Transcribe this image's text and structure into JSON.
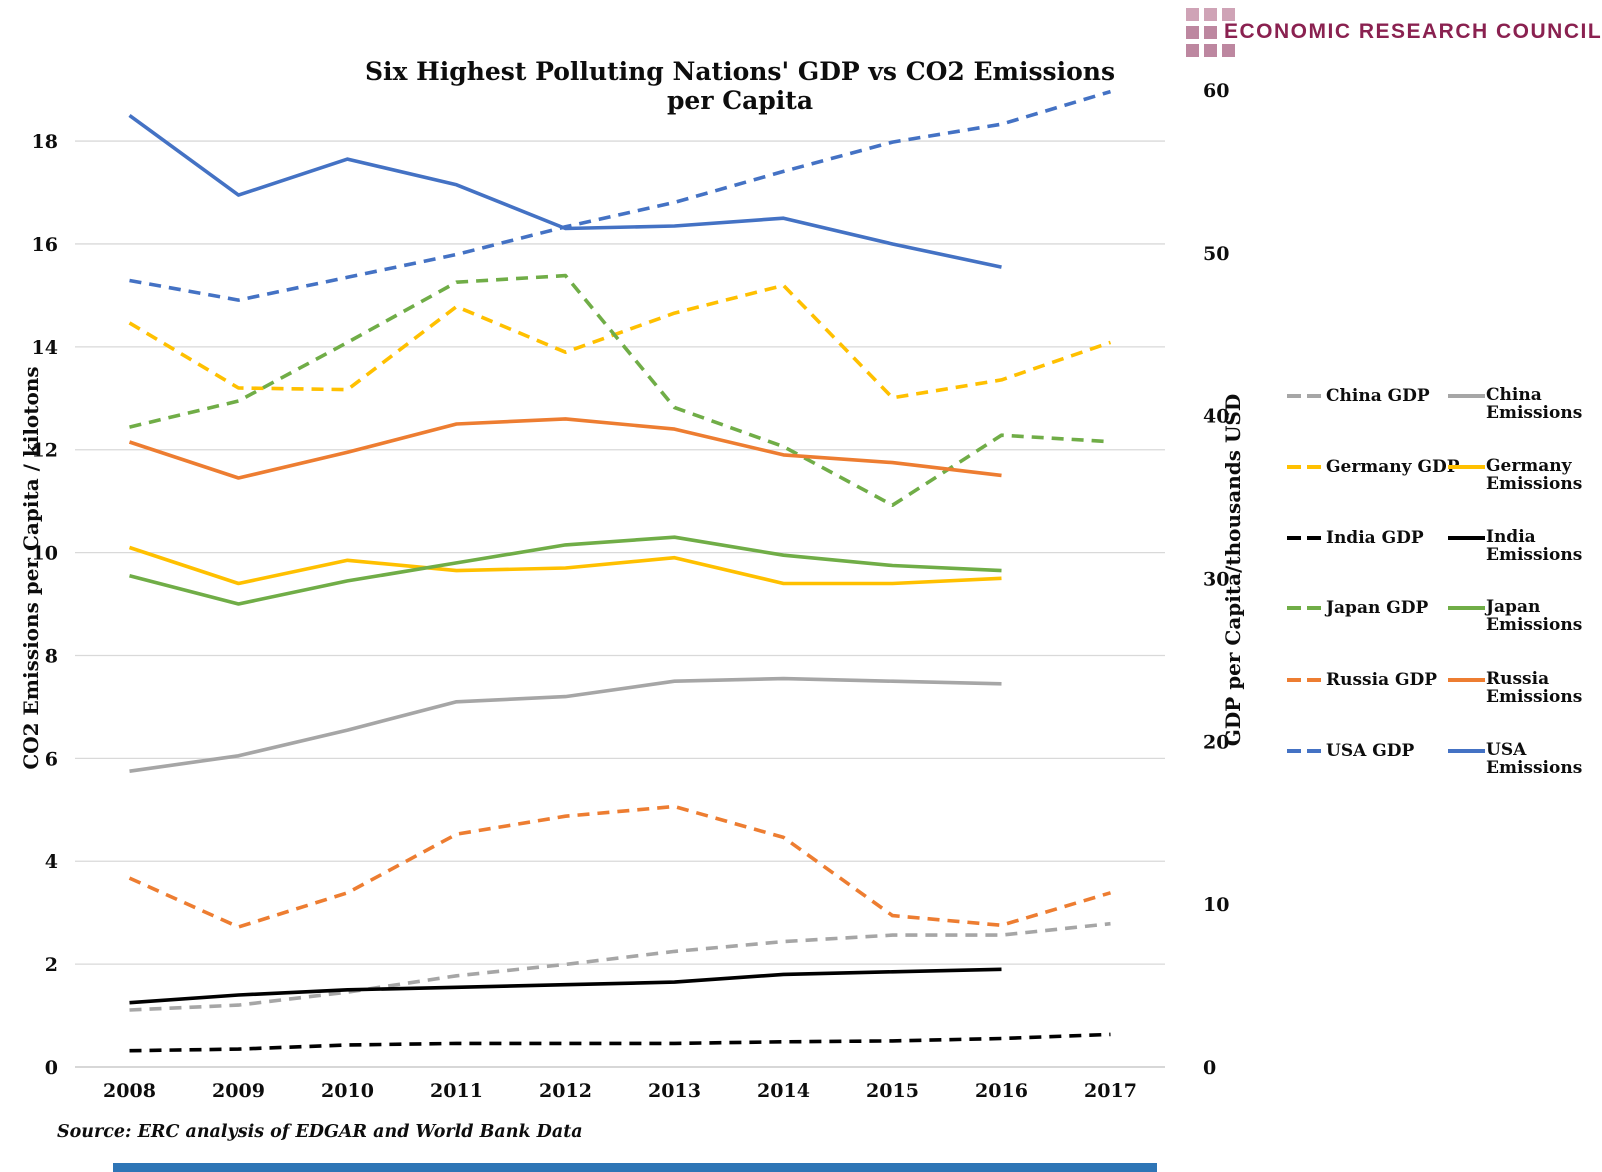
{
  "logo": {
    "text": "ECONOMIC RESEARCH COUNCIL",
    "brand_color": "#8a2150"
  },
  "chart_data": {
    "type": "line",
    "title": "Six Highest Polluting Nations' GDP vs CO2 Emissions per Capita",
    "source": "Source: ERC analysis of EDGAR and World Bank Data",
    "x": [
      2008,
      2009,
      2010,
      2011,
      2012,
      2013,
      2014,
      2015,
      2016,
      2017
    ],
    "left_axis": {
      "label": "CO2 Emissions per Capita / kilotons",
      "ticks": [
        0,
        2,
        4,
        6,
        8,
        10,
        12,
        14,
        16,
        18
      ],
      "range": [
        0,
        19.3
      ],
      "grid": true
    },
    "right_axis": {
      "label": "GDP per Capita/thousands USD",
      "ticks": [
        0,
        10,
        20,
        30,
        40,
        50,
        60
      ],
      "range": [
        0,
        60
      ],
      "grid": false
    },
    "legend_position": "right",
    "series": [
      {
        "name": "China GDP",
        "axis": "right",
        "style": "dashed",
        "color": "#A6A6A6",
        "values": [
          3.5,
          3.8,
          4.6,
          5.6,
          6.3,
          7.1,
          7.7,
          8.1,
          8.1,
          8.8
        ]
      },
      {
        "name": "China Emissions",
        "axis": "left",
        "style": "solid",
        "color": "#A6A6A6",
        "values": [
          5.75,
          6.05,
          6.55,
          7.1,
          7.2,
          7.5,
          7.55,
          7.5,
          7.45,
          null
        ]
      },
      {
        "name": "Germany GDP",
        "axis": "right",
        "style": "dashed",
        "color": "#FFC000",
        "values": [
          45.7,
          41.7,
          41.6,
          46.7,
          43.9,
          46.3,
          48.0,
          41.1,
          42.2,
          44.5
        ]
      },
      {
        "name": "Germany Emissions",
        "axis": "left",
        "style": "solid",
        "color": "#FFC000",
        "values": [
          10.1,
          9.4,
          9.85,
          9.65,
          9.7,
          9.9,
          9.4,
          9.4,
          9.5,
          null
        ]
      },
      {
        "name": "India GDP",
        "axis": "right",
        "style": "dashed",
        "color": "#000000",
        "values": [
          1.0,
          1.1,
          1.35,
          1.45,
          1.45,
          1.45,
          1.55,
          1.6,
          1.75,
          2.0
        ]
      },
      {
        "name": "India Emissions",
        "axis": "left",
        "style": "solid",
        "color": "#000000",
        "values": [
          1.25,
          1.4,
          1.5,
          1.55,
          1.6,
          1.65,
          1.8,
          1.85,
          1.9,
          null
        ]
      },
      {
        "name": "Japan GDP",
        "axis": "right",
        "style": "dashed",
        "color": "#70AD47",
        "values": [
          39.3,
          40.9,
          44.5,
          48.2,
          48.6,
          40.5,
          38.1,
          34.5,
          38.8,
          38.4
        ]
      },
      {
        "name": "Japan Emissions",
        "axis": "left",
        "style": "solid",
        "color": "#70AD47",
        "values": [
          9.55,
          9.0,
          9.45,
          9.8,
          10.15,
          10.3,
          9.95,
          9.75,
          9.65,
          null
        ]
      },
      {
        "name": "Russia GDP",
        "axis": "right",
        "style": "dashed",
        "color": "#ED7D31",
        "values": [
          11.6,
          8.6,
          10.7,
          14.3,
          15.4,
          16.0,
          14.1,
          9.3,
          8.7,
          10.7
        ]
      },
      {
        "name": "Russia Emissions",
        "axis": "left",
        "style": "solid",
        "color": "#ED7D31",
        "values": [
          12.15,
          11.45,
          11.95,
          12.5,
          12.6,
          12.4,
          11.9,
          11.75,
          11.5,
          null
        ]
      },
      {
        "name": "USA GDP",
        "axis": "right",
        "style": "dashed",
        "color": "#4472C4",
        "values": [
          48.3,
          47.1,
          48.5,
          49.9,
          51.6,
          53.1,
          55.0,
          56.8,
          57.9,
          59.9
        ]
      },
      {
        "name": "USA Emissions",
        "axis": "left",
        "style": "solid",
        "color": "#4472C4",
        "values": [
          18.5,
          16.95,
          17.65,
          17.15,
          16.3,
          16.35,
          16.5,
          16.0,
          15.55,
          null
        ]
      }
    ],
    "colors": {
      "gridline": "#D9D9D9",
      "axis_line": "#BFBFBF"
    }
  },
  "footer": {
    "bar_color": "#2e75b6"
  }
}
